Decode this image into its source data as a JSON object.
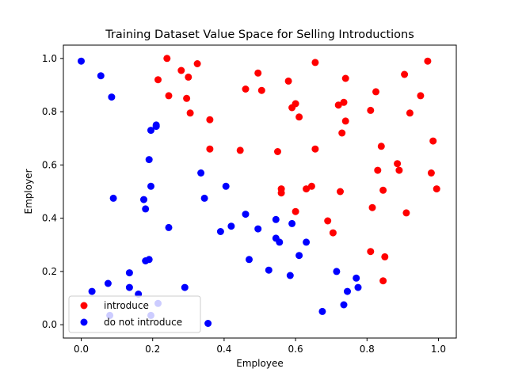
{
  "chart_data": {
    "type": "scatter",
    "title": "Training Dataset Value Space for Selling Introductions",
    "xlabel": "Employee",
    "ylabel": "Employer",
    "xlim": [
      -0.05,
      1.05
    ],
    "ylim": [
      -0.05,
      1.05
    ],
    "xticks": [
      "0.0",
      "0.2",
      "0.4",
      "0.6",
      "0.8",
      "1.0"
    ],
    "yticks": [
      "0.0",
      "0.2",
      "0.4",
      "0.6",
      "0.8",
      "1.0"
    ],
    "grid": false,
    "legend_position": "lower-left",
    "series": [
      {
        "name": "introduce",
        "color": "#ff0000",
        "x": [
          0.24,
          0.215,
          0.28,
          0.325,
          0.245,
          0.295,
          0.3,
          0.305,
          0.36,
          0.36,
          0.445,
          0.46,
          0.495,
          0.505,
          0.55,
          0.56,
          0.56,
          0.58,
          0.59,
          0.6,
          0.6,
          0.61,
          0.63,
          0.645,
          0.655,
          0.655,
          0.69,
          0.705,
          0.72,
          0.725,
          0.73,
          0.735,
          0.74,
          0.74,
          0.81,
          0.815,
          0.81,
          0.825,
          0.83,
          0.84,
          0.845,
          0.845,
          0.85,
          0.885,
          0.89,
          0.905,
          0.91,
          0.92,
          0.95,
          0.97,
          0.98,
          0.985,
          0.995
        ],
        "y": [
          1.0,
          0.92,
          0.955,
          0.98,
          0.86,
          0.85,
          0.93,
          0.795,
          0.77,
          0.66,
          0.655,
          0.885,
          0.945,
          0.88,
          0.65,
          0.51,
          0.495,
          0.915,
          0.815,
          0.83,
          0.425,
          0.78,
          0.51,
          0.52,
          0.985,
          0.66,
          0.39,
          0.345,
          0.825,
          0.5,
          0.72,
          0.835,
          0.925,
          0.765,
          0.275,
          0.44,
          0.805,
          0.875,
          0.58,
          0.67,
          0.165,
          0.505,
          0.255,
          0.605,
          0.58,
          0.94,
          0.42,
          0.795,
          0.86,
          0.99,
          0.57,
          0.69,
          0.51
        ]
      },
      {
        "name": "do not introduce",
        "color": "#0000ff",
        "x": [
          0.0,
          0.055,
          0.085,
          0.09,
          0.03,
          0.075,
          0.08,
          0.135,
          0.135,
          0.16,
          0.175,
          0.18,
          0.18,
          0.19,
          0.19,
          0.195,
          0.195,
          0.21,
          0.21,
          0.195,
          0.215,
          0.245,
          0.29,
          0.335,
          0.345,
          0.355,
          0.39,
          0.405,
          0.42,
          0.46,
          0.47,
          0.495,
          0.525,
          0.545,
          0.545,
          0.555,
          0.585,
          0.59,
          0.61,
          0.63,
          0.675,
          0.715,
          0.735,
          0.745,
          0.77,
          0.775
        ],
        "y": [
          0.99,
          0.935,
          0.855,
          0.475,
          0.125,
          0.155,
          0.035,
          0.195,
          0.14,
          0.115,
          0.47,
          0.435,
          0.24,
          0.245,
          0.62,
          0.52,
          0.73,
          0.745,
          0.75,
          0.035,
          0.08,
          0.365,
          0.14,
          0.57,
          0.475,
          0.005,
          0.35,
          0.52,
          0.37,
          0.415,
          0.245,
          0.36,
          0.205,
          0.395,
          0.325,
          0.31,
          0.185,
          0.38,
          0.26,
          0.31,
          0.05,
          0.2,
          0.075,
          0.125,
          0.175,
          0.14
        ]
      }
    ]
  }
}
